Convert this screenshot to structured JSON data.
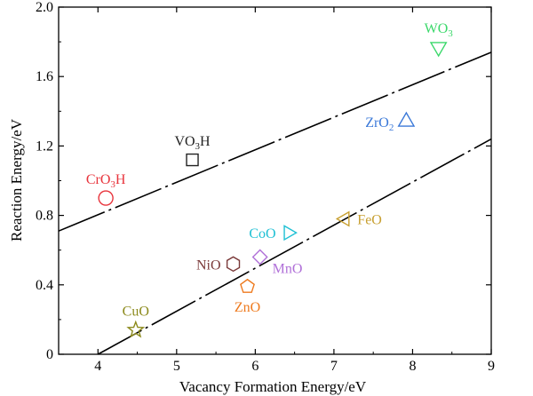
{
  "chart_data": {
    "type": "scatter",
    "xlabel": "Vacancy Formation Energy/eV",
    "ylabel": "Reaction Energy/eV",
    "xlim": [
      3.5,
      9
    ],
    "ylim": [
      0,
      2.0
    ],
    "xticks": [
      "4",
      "5",
      "6",
      "7",
      "8",
      "9"
    ],
    "yticks": [
      "0",
      "0.4",
      "0.8",
      "1.2",
      "1.6",
      "2.0"
    ],
    "grid": false,
    "points": [
      {
        "label": "CuO",
        "sub": "",
        "tail": "",
        "x": 4.48,
        "y": 0.14,
        "marker": "star",
        "color": "#8c8a1c",
        "label_pos": "above"
      },
      {
        "label": "CrO",
        "sub": "3",
        "tail": "H",
        "x": 4.1,
        "y": 0.9,
        "marker": "circle",
        "color": "#e8343c",
        "label_pos": "above"
      },
      {
        "label": "VO",
        "sub": "3",
        "tail": "H",
        "x": 5.2,
        "y": 1.12,
        "marker": "square",
        "color": "#222222",
        "label_pos": "above"
      },
      {
        "label": "NiO",
        "sub": "",
        "tail": "",
        "x": 5.72,
        "y": 0.52,
        "marker": "hexagon",
        "color": "#7b3a3a",
        "label_pos": "left"
      },
      {
        "label": "ZnO",
        "sub": "",
        "tail": "",
        "x": 5.9,
        "y": 0.39,
        "marker": "pentagon",
        "color": "#ee7a1e",
        "label_pos": "below"
      },
      {
        "label": "MnO",
        "sub": "",
        "tail": "",
        "x": 6.06,
        "y": 0.56,
        "marker": "diamond",
        "color": "#b070d8",
        "label_pos": "below-right"
      },
      {
        "label": "CoO",
        "sub": "",
        "tail": "",
        "x": 6.42,
        "y": 0.7,
        "marker": "tri-right",
        "color": "#1fc0d4",
        "label_pos": "left"
      },
      {
        "label": "FeO",
        "sub": "",
        "tail": "",
        "x": 7.14,
        "y": 0.78,
        "marker": "tri-left",
        "color": "#c8a032",
        "label_pos": "right"
      },
      {
        "label": "ZrO",
        "sub": "2",
        "tail": "",
        "x": 7.92,
        "y": 1.34,
        "marker": "tri-up",
        "color": "#3a78d8",
        "label_pos": "left"
      },
      {
        "label": "WO",
        "sub": "3",
        "tail": "",
        "x": 8.33,
        "y": 1.77,
        "marker": "tri-down",
        "color": "#3ad86a",
        "label_pos": "above"
      }
    ],
    "lines": [
      {
        "x": [
          3.5,
          9.0
        ],
        "y": [
          0.71,
          1.74
        ],
        "style": "dash-dot",
        "color": "#000000"
      },
      {
        "x": [
          4.0,
          9.0
        ],
        "y": [
          0.0,
          1.24
        ],
        "style": "dash-dot",
        "color": "#000000"
      }
    ]
  }
}
